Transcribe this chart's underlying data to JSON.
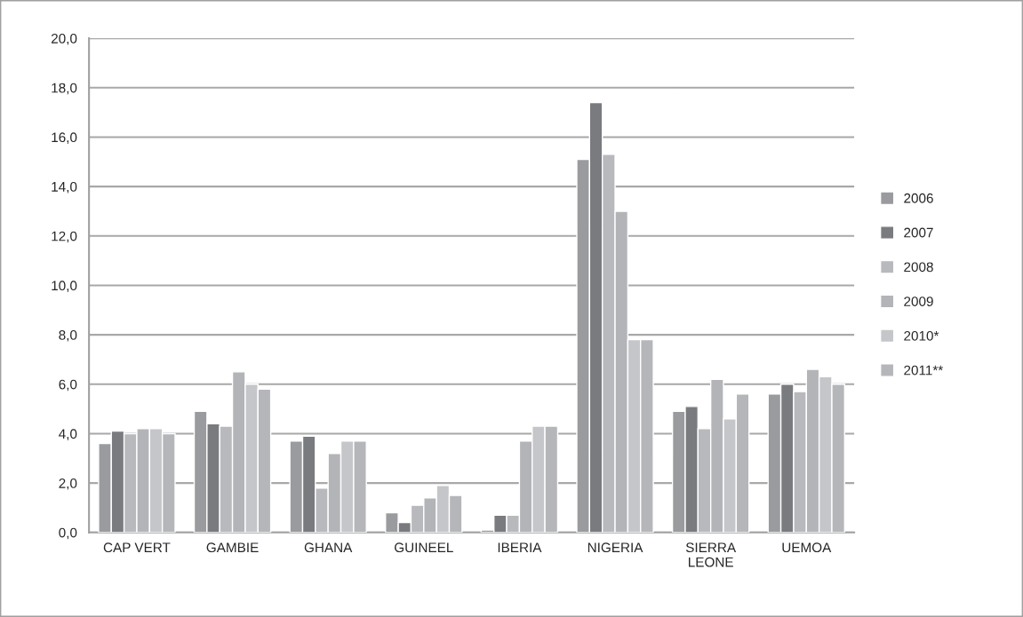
{
  "chart_data": {
    "type": "bar",
    "categories": [
      "CAP VERT",
      "GAMBIE",
      "GHANA",
      "GUINEEL",
      "IBERIA",
      "NIGERIA",
      "SIERRA\nLEONE",
      "UEMOA"
    ],
    "series": [
      {
        "name": "2006",
        "color": "#9a9b9f",
        "values": [
          3.6,
          4.9,
          3.7,
          0.8,
          0.1,
          15.1,
          4.9,
          5.6
        ]
      },
      {
        "name": "2007",
        "color": "#7a7b7f",
        "values": [
          4.1,
          4.4,
          3.9,
          0.4,
          0.7,
          17.4,
          5.1,
          6.0
        ]
      },
      {
        "name": "2008",
        "color": "#b8b9bd",
        "values": [
          4.0,
          4.3,
          1.8,
          1.1,
          0.7,
          15.3,
          4.2,
          5.7
        ]
      },
      {
        "name": "2009",
        "color": "#b3b4b8",
        "values": [
          4.2,
          6.5,
          3.2,
          1.4,
          3.7,
          13.0,
          6.2,
          6.6
        ]
      },
      {
        "name": "2010*",
        "color": "#c5c6c9",
        "values": [
          4.2,
          6.0,
          3.7,
          1.9,
          4.3,
          7.8,
          4.6,
          6.3
        ]
      },
      {
        "name": "2011**",
        "color": "#b5b6ba",
        "values": [
          4.0,
          5.8,
          3.7,
          1.5,
          4.3,
          7.8,
          5.6,
          6.0
        ]
      }
    ],
    "ylim": [
      0,
      20
    ],
    "yticks": [
      {
        "value": 0,
        "label": "0,0"
      },
      {
        "value": 2,
        "label": "2,0"
      },
      {
        "value": 4,
        "label": "4,0"
      },
      {
        "value": 6,
        "label": "6,0"
      },
      {
        "value": 8,
        "label": "8,0"
      },
      {
        "value": 10,
        "label": "10,0"
      },
      {
        "value": 12,
        "label": "12,0"
      },
      {
        "value": 14,
        "label": "14,0"
      },
      {
        "value": 16,
        "label": "16,0"
      },
      {
        "value": 18,
        "label": "18,0"
      },
      {
        "value": 20,
        "label": "20,0"
      }
    ],
    "grid": "y",
    "legend": "right"
  }
}
